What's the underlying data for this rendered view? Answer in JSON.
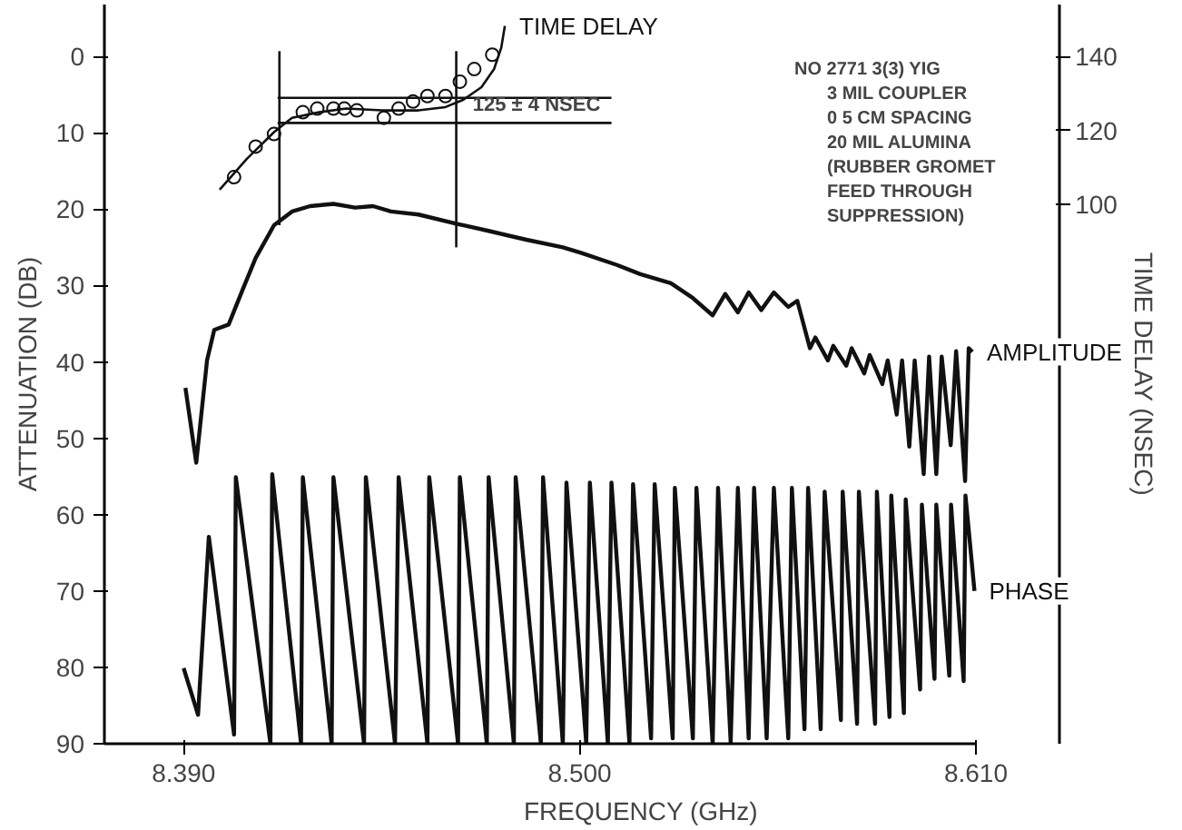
{
  "chart_data": {
    "type": "line",
    "xlabel": "FREQUENCY (GHz)",
    "ylabel": "ATTENUATION (DB)",
    "y2label": "TIME DELAY (NSEC)",
    "xlim": [
      8.368,
      8.61
    ],
    "xticks": [
      {
        "value": 8.39,
        "label": "8.390"
      },
      {
        "value": 8.5,
        "label": "8.500"
      },
      {
        "value": 8.61,
        "label": "8.610"
      }
    ],
    "ylim": [
      90,
      -6.8
    ],
    "yticks": [
      0,
      10,
      20,
      30,
      40,
      50,
      60,
      70,
      80,
      90
    ],
    "y2lim": [
      -46.3,
      154.1
    ],
    "y2ticks": [
      100,
      120,
      140
    ],
    "grid": false,
    "series": [
      {
        "name": "AMPLITUDE",
        "color": "#111111",
        "x": [
          8.3905,
          8.3935,
          8.3965,
          8.3985,
          8.4025,
          8.4065,
          8.41,
          8.4151,
          8.4201,
          8.4251,
          8.4316,
          8.4376,
          8.4426,
          8.4476,
          8.4552,
          8.4657,
          8.4752,
          8.4852,
          8.4953,
          8.5003,
          8.5103,
          8.5168,
          8.5253,
          8.5313,
          8.5369,
          8.5404,
          8.5439,
          8.5469,
          8.5504,
          8.5539,
          8.5579,
          8.5604,
          8.5639,
          8.5654,
          8.5689,
          8.5704,
          8.574,
          8.5755,
          8.579,
          8.5805,
          8.584,
          8.5855,
          8.588,
          8.5895,
          8.5915,
          8.593,
          8.5955,
          8.597,
          8.599,
          8.6005,
          8.603,
          8.6045,
          8.607,
          8.608,
          8.609
        ],
        "values": [
          43.4,
          53.2,
          39.8,
          35.8,
          35.1,
          30.4,
          26.4,
          22.1,
          20.3,
          19.6,
          19.3,
          19.8,
          19.6,
          20.3,
          20.7,
          21.9,
          22.9,
          24.0,
          25.0,
          25.7,
          27.3,
          28.5,
          29.7,
          31.6,
          33.9,
          31.1,
          33.5,
          30.9,
          33.2,
          30.9,
          32.8,
          32.0,
          38.2,
          36.8,
          39.8,
          37.9,
          40.5,
          38.2,
          41.5,
          39.1,
          42.9,
          39.8,
          46.9,
          39.8,
          51.1,
          39.8,
          54.7,
          39.3,
          54.7,
          39.3,
          50.9,
          38.6,
          55.6,
          38.2,
          38.7
        ]
      },
      {
        "name": "PHASE",
        "color": "#111111",
        "x": [
          8.39,
          8.394,
          8.397,
          8.404,
          8.4045,
          8.4141,
          8.4146,
          8.4226,
          8.4231,
          8.4311,
          8.4316,
          8.4401,
          8.4406,
          8.4487,
          8.4497,
          8.4577,
          8.4582,
          8.4662,
          8.4667,
          8.4742,
          8.4747,
          8.4817,
          8.4822,
          8.4892,
          8.4898,
          8.4953,
          8.4963,
          8.5018,
          8.5028,
          8.5078,
          8.5088,
          8.5138,
          8.5148,
          8.5198,
          8.5208,
          8.5258,
          8.5264,
          8.5314,
          8.5324,
          8.5369,
          8.5384,
          8.5419,
          8.5439,
          8.5469,
          8.5484,
          8.5519,
          8.5539,
          8.5579,
          8.5589,
          8.5624,
          8.5634,
          8.5669,
          8.568,
          8.5725,
          8.573,
          8.577,
          8.5775,
          8.582,
          8.5825,
          8.586,
          8.5865,
          8.59,
          8.5905,
          8.5945,
          8.595,
          8.5985,
          8.599,
          8.6026,
          8.6031,
          8.6066,
          8.6071,
          8.6096
        ],
        "values": [
          80.1,
          86.2,
          62.9,
          88.8,
          55.1,
          90,
          54.7,
          90,
          55.1,
          90,
          55.1,
          90,
          55.1,
          90,
          55.1,
          90,
          55.1,
          90,
          55.1,
          90,
          55.1,
          90,
          55.1,
          90,
          55.1,
          90,
          55.8,
          90,
          55.8,
          90,
          55.8,
          90,
          56.0,
          89.3,
          56.0,
          89.3,
          56.5,
          89.3,
          56.5,
          90,
          56.5,
          89.8,
          56.5,
          89.3,
          56.5,
          89.3,
          56.5,
          89.3,
          56.5,
          88.1,
          56.5,
          88.1,
          57.0,
          86.9,
          57.0,
          87.4,
          57.0,
          87.4,
          57.0,
          86.5,
          57.5,
          86.0,
          58.0,
          82.9,
          58.7,
          81.5,
          58.7,
          81.1,
          58.7,
          81.8,
          57.5,
          70.0
        ]
      },
      {
        "name": "TIME DELAY",
        "axis": "y2",
        "color": "#111111",
        "x": [
          8.4,
          8.4075,
          8.4151,
          8.4201,
          8.4276,
          8.4351,
          8.4451,
          8.4552,
          8.4627,
          8.4677,
          8.4727,
          8.4762,
          8.4782,
          8.4792
        ],
        "values": [
          103.9,
          112.2,
          119.5,
          123.4,
          124.9,
          125.9,
          125.4,
          125.4,
          126.3,
          128.3,
          131.7,
          136.6,
          142.4,
          148.3
        ]
      },
      {
        "type": "scatter",
        "axis": "y2",
        "marker": "circle",
        "color": "#111111",
        "x": [
          8.404,
          8.41,
          8.4151,
          8.4231,
          8.4271,
          8.4316,
          8.4346,
          8.4381,
          8.4456,
          8.4497,
          8.4537,
          8.4577,
          8.4627,
          8.4667,
          8.4707,
          8.4757
        ],
        "values": [
          107.3,
          115.6,
          119.0,
          124.9,
          125.9,
          125.9,
          125.9,
          125.4,
          123.4,
          125.9,
          127.8,
          129.3,
          129.3,
          133.2,
          136.6,
          140.5
        ]
      },
      {
        "axis": "y2",
        "color": "#111111",
        "x": [
          8.4161,
          8.5088
        ],
        "values": [
          128.8,
          128.8
        ]
      },
      {
        "axis": "y2",
        "color": "#111111",
        "x": [
          8.4161,
          8.5088
        ],
        "values": [
          122.0,
          122.0
        ]
      },
      {
        "color": "#111111",
        "x": [
          8.4166,
          8.4166
        ],
        "values": [
          -0.7,
          22.1
        ]
      },
      {
        "color": "#111111",
        "x": [
          8.4657,
          8.4657
        ],
        "values": [
          -0.7,
          25.0
        ]
      }
    ],
    "annotations": [
      {
        "text": "125 ± 4 NSEC",
        "x": 8.488,
        "y": 6.4
      },
      "NO  2771  3(3) YIG",
      "3 MIL COUPLER",
      "0 5 CM SPACING",
      "20 MIL ALUMINA",
      "(RUBBER GROMET",
      "FEED THROUGH",
      "SUPPRESSION)"
    ]
  }
}
